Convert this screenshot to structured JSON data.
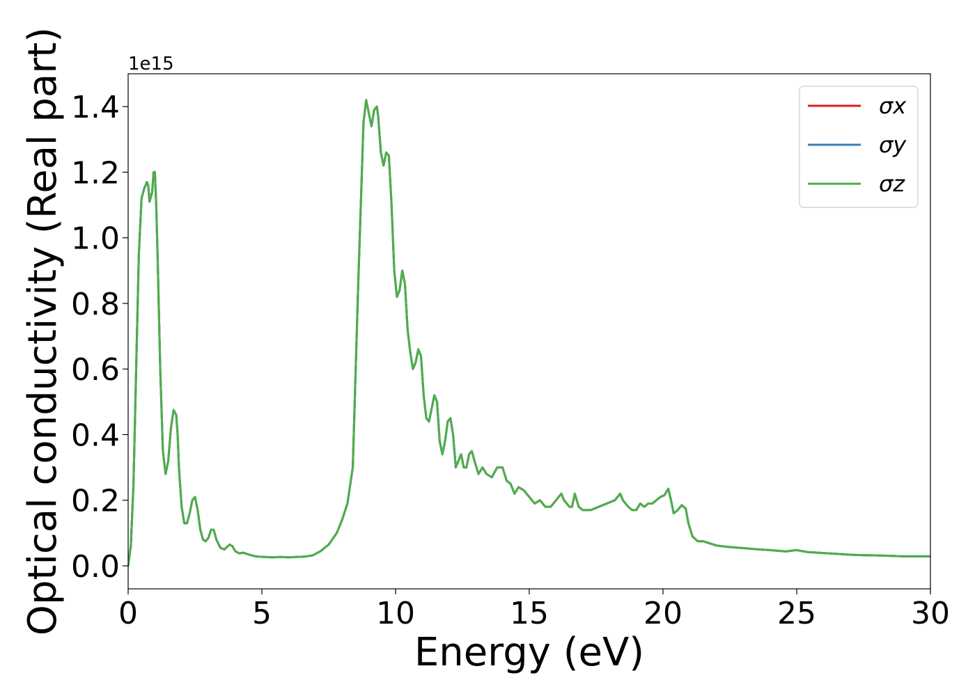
{
  "chart_data": {
    "type": "line",
    "title": "",
    "xlabel": "Energy (eV)",
    "ylabel": "Optical conductivity (Real part)",
    "y_offset_text": "1e15",
    "y_multiplier": 1000000000000000.0,
    "xlim": [
      0,
      30
    ],
    "ylim": [
      -0.07,
      1.5
    ],
    "x_ticks": [
      0,
      5,
      10,
      15,
      20,
      25,
      30
    ],
    "x_tick_labels": [
      "0",
      "5",
      "10",
      "15",
      "20",
      "25",
      "30"
    ],
    "y_ticks": [
      0.0,
      0.2,
      0.4,
      0.6,
      0.8,
      1.0,
      1.2,
      1.4
    ],
    "y_tick_labels": [
      "0.0",
      "0.2",
      "0.4",
      "0.6",
      "0.8",
      "1.0",
      "1.2",
      "1.4"
    ],
    "grid": false,
    "legend_position": "top-right",
    "x": [
      0,
      0.1,
      0.2,
      0.3,
      0.4,
      0.5,
      0.6,
      0.7,
      0.75,
      0.8,
      0.9,
      0.95,
      1.0,
      1.05,
      1.1,
      1.2,
      1.3,
      1.4,
      1.5,
      1.6,
      1.7,
      1.8,
      1.85,
      1.9,
      2.0,
      2.1,
      2.2,
      2.3,
      2.4,
      2.5,
      2.6,
      2.7,
      2.8,
      2.9,
      3.0,
      3.1,
      3.2,
      3.3,
      3.45,
      3.6,
      3.7,
      3.8,
      3.9,
      4.0,
      4.15,
      4.3,
      4.5,
      4.7,
      4.9,
      5.1,
      5.4,
      5.7,
      6.0,
      6.3,
      6.6,
      6.9,
      7.2,
      7.5,
      7.8,
      8.0,
      8.2,
      8.4,
      8.6,
      8.8,
      8.9,
      9.0,
      9.1,
      9.2,
      9.3,
      9.35,
      9.45,
      9.55,
      9.65,
      9.75,
      9.85,
      9.95,
      10.05,
      10.15,
      10.25,
      10.35,
      10.45,
      10.55,
      10.65,
      10.75,
      10.85,
      10.95,
      11.05,
      11.15,
      11.25,
      11.35,
      11.45,
      11.55,
      11.65,
      11.75,
      11.85,
      11.95,
      12.05,
      12.15,
      12.25,
      12.35,
      12.45,
      12.55,
      12.65,
      12.75,
      12.85,
      12.95,
      13.1,
      13.25,
      13.4,
      13.6,
      13.8,
      14.0,
      14.15,
      14.3,
      14.45,
      14.6,
      14.8,
      15.0,
      15.2,
      15.4,
      15.6,
      15.8,
      16.0,
      16.2,
      16.3,
      16.5,
      16.6,
      16.7,
      16.85,
      17.0,
      17.3,
      17.6,
      17.9,
      18.2,
      18.4,
      18.5,
      18.7,
      18.85,
      19.0,
      19.15,
      19.3,
      19.45,
      19.6,
      19.75,
      19.9,
      20.05,
      20.2,
      20.3,
      20.4,
      20.55,
      20.7,
      20.85,
      20.95,
      21.1,
      21.3,
      21.5,
      21.7,
      22.0,
      22.2,
      22.4,
      22.7,
      23.0,
      23.3,
      23.6,
      24.0,
      24.3,
      24.6,
      25.0,
      25.4,
      25.8,
      26.2,
      26.6,
      27.0,
      27.3,
      27.8,
      28.3,
      28.7,
      29.0,
      29.3,
      29.6,
      30.0
    ],
    "series": [
      {
        "name": "σx",
        "color": "#e41a1c",
        "y": [
          0.0,
          0.06,
          0.25,
          0.6,
          0.95,
          1.12,
          1.15,
          1.17,
          1.16,
          1.11,
          1.14,
          1.2,
          1.2,
          1.1,
          0.95,
          0.6,
          0.35,
          0.28,
          0.32,
          0.42,
          0.475,
          0.46,
          0.4,
          0.3,
          0.18,
          0.13,
          0.13,
          0.16,
          0.2,
          0.21,
          0.17,
          0.11,
          0.08,
          0.075,
          0.085,
          0.11,
          0.11,
          0.08,
          0.055,
          0.05,
          0.058,
          0.065,
          0.06,
          0.045,
          0.038,
          0.04,
          0.035,
          0.03,
          0.028,
          0.027,
          0.026,
          0.027,
          0.026,
          0.027,
          0.028,
          0.032,
          0.045,
          0.065,
          0.1,
          0.14,
          0.19,
          0.3,
          0.85,
          1.35,
          1.42,
          1.38,
          1.34,
          1.39,
          1.4,
          1.37,
          1.26,
          1.22,
          1.26,
          1.25,
          1.1,
          0.9,
          0.82,
          0.84,
          0.9,
          0.86,
          0.72,
          0.65,
          0.6,
          0.62,
          0.66,
          0.64,
          0.52,
          0.45,
          0.44,
          0.48,
          0.52,
          0.5,
          0.38,
          0.34,
          0.38,
          0.44,
          0.45,
          0.4,
          0.3,
          0.32,
          0.34,
          0.3,
          0.3,
          0.34,
          0.35,
          0.32,
          0.28,
          0.3,
          0.28,
          0.27,
          0.3,
          0.3,
          0.26,
          0.25,
          0.22,
          0.24,
          0.23,
          0.21,
          0.19,
          0.2,
          0.18,
          0.18,
          0.2,
          0.22,
          0.2,
          0.18,
          0.18,
          0.22,
          0.18,
          0.17,
          0.17,
          0.18,
          0.19,
          0.2,
          0.22,
          0.2,
          0.18,
          0.17,
          0.17,
          0.19,
          0.18,
          0.19,
          0.19,
          0.2,
          0.21,
          0.215,
          0.235,
          0.2,
          0.16,
          0.17,
          0.185,
          0.175,
          0.13,
          0.09,
          0.075,
          0.075,
          0.07,
          0.062,
          0.06,
          0.058,
          0.056,
          0.054,
          0.052,
          0.05,
          0.048,
          0.046,
          0.044,
          0.048,
          0.042,
          0.04,
          0.038,
          0.036,
          0.034,
          0.033,
          0.032,
          0.031,
          0.03,
          0.029,
          0.029,
          0.029,
          0.029
        ]
      },
      {
        "name": "σy",
        "color": "#377eb8",
        "y": [
          0.0,
          0.06,
          0.25,
          0.6,
          0.95,
          1.12,
          1.15,
          1.17,
          1.16,
          1.11,
          1.14,
          1.2,
          1.2,
          1.1,
          0.95,
          0.6,
          0.35,
          0.28,
          0.32,
          0.42,
          0.475,
          0.46,
          0.4,
          0.3,
          0.18,
          0.13,
          0.13,
          0.16,
          0.2,
          0.21,
          0.17,
          0.11,
          0.08,
          0.075,
          0.085,
          0.11,
          0.11,
          0.08,
          0.055,
          0.05,
          0.058,
          0.065,
          0.06,
          0.045,
          0.038,
          0.04,
          0.035,
          0.03,
          0.028,
          0.027,
          0.026,
          0.027,
          0.026,
          0.027,
          0.028,
          0.032,
          0.045,
          0.065,
          0.1,
          0.14,
          0.19,
          0.3,
          0.85,
          1.35,
          1.42,
          1.38,
          1.34,
          1.39,
          1.4,
          1.37,
          1.26,
          1.22,
          1.26,
          1.25,
          1.1,
          0.9,
          0.82,
          0.84,
          0.9,
          0.86,
          0.72,
          0.65,
          0.6,
          0.62,
          0.66,
          0.64,
          0.52,
          0.45,
          0.44,
          0.48,
          0.52,
          0.5,
          0.38,
          0.34,
          0.38,
          0.44,
          0.45,
          0.4,
          0.3,
          0.32,
          0.34,
          0.3,
          0.3,
          0.34,
          0.35,
          0.32,
          0.28,
          0.3,
          0.28,
          0.27,
          0.3,
          0.3,
          0.26,
          0.25,
          0.22,
          0.24,
          0.23,
          0.21,
          0.19,
          0.2,
          0.18,
          0.18,
          0.2,
          0.22,
          0.2,
          0.18,
          0.18,
          0.22,
          0.18,
          0.17,
          0.17,
          0.18,
          0.19,
          0.2,
          0.22,
          0.2,
          0.18,
          0.17,
          0.17,
          0.19,
          0.18,
          0.19,
          0.19,
          0.2,
          0.21,
          0.215,
          0.235,
          0.2,
          0.16,
          0.17,
          0.185,
          0.175,
          0.13,
          0.09,
          0.075,
          0.075,
          0.07,
          0.062,
          0.06,
          0.058,
          0.056,
          0.054,
          0.052,
          0.05,
          0.048,
          0.046,
          0.044,
          0.048,
          0.042,
          0.04,
          0.038,
          0.036,
          0.034,
          0.033,
          0.032,
          0.031,
          0.03,
          0.029,
          0.029,
          0.029,
          0.029
        ]
      },
      {
        "name": "σz",
        "color": "#4daf4a",
        "y": [
          0.0,
          0.06,
          0.25,
          0.6,
          0.95,
          1.12,
          1.15,
          1.17,
          1.16,
          1.11,
          1.14,
          1.2,
          1.2,
          1.1,
          0.95,
          0.6,
          0.35,
          0.28,
          0.32,
          0.42,
          0.475,
          0.46,
          0.4,
          0.3,
          0.18,
          0.13,
          0.13,
          0.16,
          0.2,
          0.21,
          0.17,
          0.11,
          0.08,
          0.075,
          0.085,
          0.11,
          0.11,
          0.08,
          0.055,
          0.05,
          0.058,
          0.065,
          0.06,
          0.045,
          0.038,
          0.04,
          0.035,
          0.03,
          0.028,
          0.027,
          0.026,
          0.027,
          0.026,
          0.027,
          0.028,
          0.032,
          0.045,
          0.065,
          0.1,
          0.14,
          0.19,
          0.3,
          0.85,
          1.35,
          1.42,
          1.38,
          1.34,
          1.39,
          1.4,
          1.37,
          1.26,
          1.22,
          1.26,
          1.25,
          1.1,
          0.9,
          0.82,
          0.84,
          0.9,
          0.86,
          0.72,
          0.65,
          0.6,
          0.62,
          0.66,
          0.64,
          0.52,
          0.45,
          0.44,
          0.48,
          0.52,
          0.5,
          0.38,
          0.34,
          0.38,
          0.44,
          0.45,
          0.4,
          0.3,
          0.32,
          0.34,
          0.3,
          0.3,
          0.34,
          0.35,
          0.32,
          0.28,
          0.3,
          0.28,
          0.27,
          0.3,
          0.3,
          0.26,
          0.25,
          0.22,
          0.24,
          0.23,
          0.21,
          0.19,
          0.2,
          0.18,
          0.18,
          0.2,
          0.22,
          0.2,
          0.18,
          0.18,
          0.22,
          0.18,
          0.17,
          0.17,
          0.18,
          0.19,
          0.2,
          0.22,
          0.2,
          0.18,
          0.17,
          0.17,
          0.19,
          0.18,
          0.19,
          0.19,
          0.2,
          0.21,
          0.215,
          0.235,
          0.2,
          0.16,
          0.17,
          0.185,
          0.175,
          0.13,
          0.09,
          0.075,
          0.075,
          0.07,
          0.062,
          0.06,
          0.058,
          0.056,
          0.054,
          0.052,
          0.05,
          0.048,
          0.046,
          0.044,
          0.048,
          0.042,
          0.04,
          0.038,
          0.036,
          0.034,
          0.033,
          0.032,
          0.031,
          0.03,
          0.029,
          0.029,
          0.029,
          0.029
        ]
      }
    ]
  }
}
